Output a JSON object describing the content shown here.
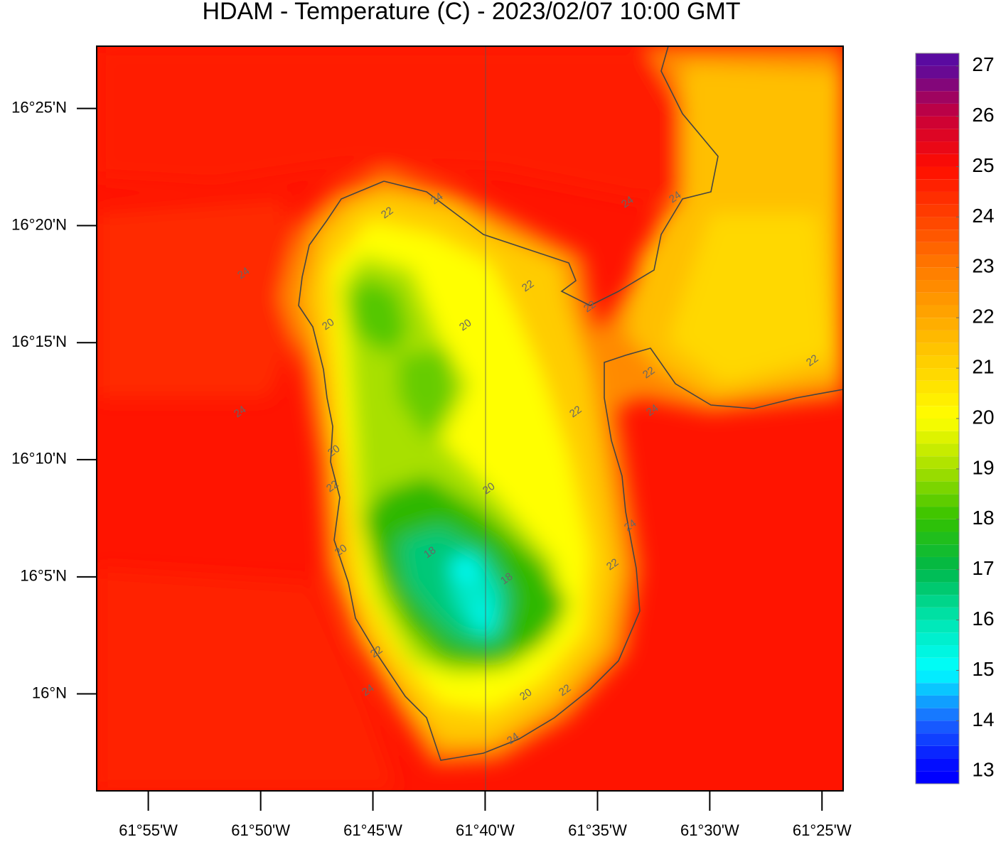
{
  "chart_data": {
    "type": "heatmap",
    "title": "HDAM - Temperature (C)  -  2023/02/07  10:00 GMT",
    "xlim": [
      -61.955,
      -61.401
    ],
    "ylim": [
      15.931,
      16.461
    ],
    "xticks": [
      {
        "value": -61.9167,
        "label": "61°55'W"
      },
      {
        "value": -61.8333,
        "label": "61°50'W"
      },
      {
        "value": -61.75,
        "label": "61°45'W"
      },
      {
        "value": -61.6667,
        "label": "61°40'W"
      },
      {
        "value": -61.5833,
        "label": "61°35'W"
      },
      {
        "value": -61.5,
        "label": "61°30'W"
      },
      {
        "value": -61.4167,
        "label": "61°25'W"
      }
    ],
    "yticks": [
      {
        "value": 16.4167,
        "label": "16°25'N"
      },
      {
        "value": 16.3333,
        "label": "16°20'N"
      },
      {
        "value": 16.25,
        "label": "16°15'N"
      },
      {
        "value": 16.1667,
        "label": "16°10'N"
      },
      {
        "value": 16.0833,
        "label": "16°5'N"
      },
      {
        "value": 16.0,
        "label": "16°N"
      }
    ],
    "colorbar": {
      "lim": [
        12.75,
        27.25
      ],
      "step": 0.25,
      "ticks": [
        13,
        14,
        15,
        16,
        17,
        18,
        19,
        20,
        21,
        22,
        23,
        24,
        25,
        26,
        27
      ],
      "colors": [
        "#0000ff",
        "#1a66ff",
        "#00ffff",
        "#00e6b0",
        "#00b84a",
        "#33c200",
        "#a6e000",
        "#ffff00",
        "#ffd400",
        "#ffa800",
        "#ff7a00",
        "#ff4200",
        "#ff0d00",
        "#c8003a",
        "#5a0aa0"
      ]
    },
    "contour_labels": [
      24,
      22,
      24,
      24,
      24,
      20,
      20,
      22,
      22,
      22,
      24,
      24,
      22,
      20,
      22,
      20,
      24,
      20,
      18,
      18,
      22,
      22,
      24,
      20,
      22,
      24,
      22
    ]
  }
}
